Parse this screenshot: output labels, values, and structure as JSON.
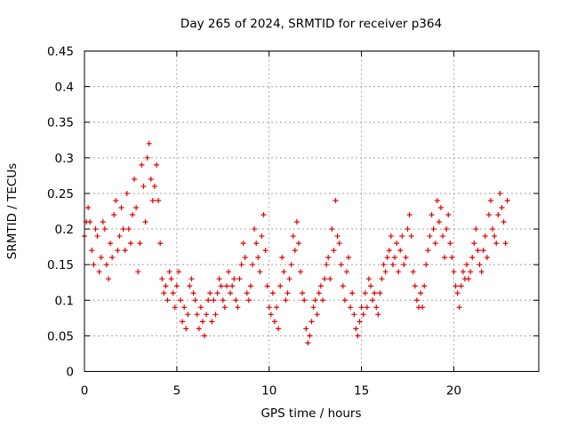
{
  "chart_data": {
    "type": "scatter",
    "title": "Day 265 of 2024, SRMTID for receiver p364",
    "xlabel": "GPS time / hours",
    "ylabel": "SRMTID / TECUs",
    "xlim": [
      0,
      24.6
    ],
    "ylim": [
      0,
      0.45
    ],
    "xticks": [
      0,
      5,
      10,
      15,
      20
    ],
    "yticks": [
      0,
      0.05,
      0.1,
      0.15,
      0.2,
      0.25,
      0.3,
      0.35,
      0.4,
      0.45
    ],
    "xtick_labels": [
      "0",
      "5",
      "10",
      "15",
      "20"
    ],
    "ytick_labels": [
      "0",
      "0.05",
      "0.1",
      "0.15",
      "0.2",
      "0.25",
      "0.3",
      "0.35",
      "0.4",
      "0.45"
    ],
    "grid": true,
    "marker": "+",
    "marker_color": "#e00000",
    "series": [
      {
        "name": "p364",
        "x": [
          0.0,
          0.1,
          0.2,
          0.3,
          0.4,
          0.5,
          0.6,
          0.7,
          0.8,
          0.9,
          1.0,
          1.1,
          1.2,
          1.3,
          1.4,
          1.5,
          1.6,
          1.7,
          1.8,
          1.9,
          2.0,
          2.1,
          2.2,
          2.3,
          2.4,
          2.5,
          2.6,
          2.7,
          2.8,
          2.9,
          3.0,
          3.1,
          3.2,
          3.3,
          3.4,
          3.5,
          3.6,
          3.7,
          3.8,
          3.9,
          4.0,
          4.1,
          4.2,
          4.3,
          4.4,
          4.5,
          4.6,
          4.7,
          4.8,
          4.9,
          5.0,
          5.1,
          5.2,
          5.3,
          5.4,
          5.5,
          5.6,
          5.7,
          5.8,
          5.9,
          6.0,
          6.1,
          6.2,
          6.3,
          6.4,
          6.5,
          6.6,
          6.7,
          6.8,
          6.9,
          7.0,
          7.1,
          7.2,
          7.3,
          7.4,
          7.5,
          7.6,
          7.7,
          7.8,
          7.9,
          8.0,
          8.1,
          8.2,
          8.3,
          8.4,
          8.5,
          8.6,
          8.7,
          8.8,
          8.9,
          9.0,
          9.1,
          9.2,
          9.3,
          9.4,
          9.5,
          9.6,
          9.7,
          9.8,
          9.9,
          10.0,
          10.1,
          10.2,
          10.3,
          10.4,
          10.5,
          10.6,
          10.7,
          10.8,
          10.9,
          11.0,
          11.1,
          11.2,
          11.3,
          11.4,
          11.5,
          11.6,
          11.7,
          11.8,
          11.9,
          12.0,
          12.1,
          12.2,
          12.3,
          12.4,
          12.5,
          12.6,
          12.7,
          12.8,
          12.9,
          13.0,
          13.1,
          13.2,
          13.3,
          13.4,
          13.5,
          13.6,
          13.7,
          13.8,
          13.9,
          14.0,
          14.1,
          14.2,
          14.3,
          14.4,
          14.5,
          14.6,
          14.7,
          14.8,
          14.9,
          15.0,
          15.1,
          15.2,
          15.3,
          15.4,
          15.5,
          15.6,
          15.7,
          15.8,
          15.9,
          16.0,
          16.1,
          16.2,
          16.3,
          16.4,
          16.5,
          16.6,
          16.7,
          16.8,
          16.9,
          17.0,
          17.1,
          17.2,
          17.3,
          17.4,
          17.5,
          17.6,
          17.7,
          17.8,
          17.9,
          18.0,
          18.1,
          18.2,
          18.3,
          18.4,
          18.5,
          18.6,
          18.7,
          18.8,
          18.9,
          19.0,
          19.1,
          19.2,
          19.3,
          19.4,
          19.5,
          19.6,
          19.7,
          19.8,
          19.9,
          20.0,
          20.1,
          20.2,
          20.3,
          20.4,
          20.5,
          20.6,
          20.7,
          20.8,
          20.9,
          21.0,
          21.1,
          21.2,
          21.3,
          21.4,
          21.5,
          21.6,
          21.7,
          21.8,
          21.9,
          22.0,
          22.1,
          22.2,
          22.3,
          22.4,
          22.5,
          22.6,
          22.7,
          22.8,
          22.9
        ],
        "y": [
          0.19,
          0.21,
          0.23,
          0.21,
          0.17,
          0.15,
          0.2,
          0.19,
          0.14,
          0.16,
          0.21,
          0.2,
          0.15,
          0.13,
          0.18,
          0.16,
          0.22,
          0.24,
          0.17,
          0.19,
          0.23,
          0.2,
          0.17,
          0.25,
          0.2,
          0.18,
          0.22,
          0.27,
          0.23,
          0.14,
          0.18,
          0.29,
          0.26,
          0.21,
          0.3,
          0.32,
          0.27,
          0.24,
          0.26,
          0.29,
          0.24,
          0.18,
          0.13,
          0.11,
          0.12,
          0.1,
          0.14,
          0.13,
          0.11,
          0.09,
          0.12,
          0.14,
          0.1,
          0.07,
          0.09,
          0.06,
          0.08,
          0.12,
          0.13,
          0.11,
          0.1,
          0.08,
          0.06,
          0.09,
          0.07,
          0.05,
          0.08,
          0.1,
          0.11,
          0.07,
          0.1,
          0.08,
          0.11,
          0.13,
          0.12,
          0.1,
          0.09,
          0.12,
          0.14,
          0.11,
          0.12,
          0.13,
          0.1,
          0.09,
          0.13,
          0.15,
          0.18,
          0.16,
          0.11,
          0.1,
          0.12,
          0.15,
          0.2,
          0.18,
          0.16,
          0.14,
          0.19,
          0.22,
          0.17,
          0.12,
          0.09,
          0.08,
          0.11,
          0.07,
          0.09,
          0.06,
          0.12,
          0.16,
          0.14,
          0.1,
          0.11,
          0.13,
          0.15,
          0.19,
          0.17,
          0.21,
          0.18,
          0.14,
          0.11,
          0.1,
          0.06,
          0.04,
          0.05,
          0.07,
          0.09,
          0.1,
          0.08,
          0.11,
          0.12,
          0.1,
          0.13,
          0.15,
          0.16,
          0.13,
          0.2,
          0.17,
          0.24,
          0.19,
          0.18,
          0.15,
          0.12,
          0.1,
          0.14,
          0.16,
          0.09,
          0.11,
          0.08,
          0.06,
          0.05,
          0.07,
          0.09,
          0.08,
          0.11,
          0.09,
          0.13,
          0.12,
          0.1,
          0.11,
          0.09,
          0.08,
          0.11,
          0.13,
          0.15,
          0.14,
          0.16,
          0.17,
          0.19,
          0.15,
          0.16,
          0.18,
          0.14,
          0.17,
          0.19,
          0.15,
          0.16,
          0.2,
          0.22,
          0.19,
          0.14,
          0.12,
          0.1,
          0.09,
          0.11,
          0.09,
          0.12,
          0.15,
          0.17,
          0.19,
          0.22,
          0.2,
          0.18,
          0.24,
          0.21,
          0.23,
          0.19,
          0.16,
          0.2,
          0.22,
          0.18,
          0.16,
          0.14,
          0.12,
          0.11,
          0.09,
          0.12,
          0.14,
          0.13,
          0.15,
          0.13,
          0.14,
          0.16,
          0.18,
          0.2,
          0.17,
          0.15,
          0.14,
          0.17,
          0.19,
          0.16,
          0.22,
          0.24,
          0.2,
          0.19,
          0.18,
          0.22,
          0.25,
          0.23,
          0.21,
          0.18,
          0.24
        ]
      }
    ]
  }
}
